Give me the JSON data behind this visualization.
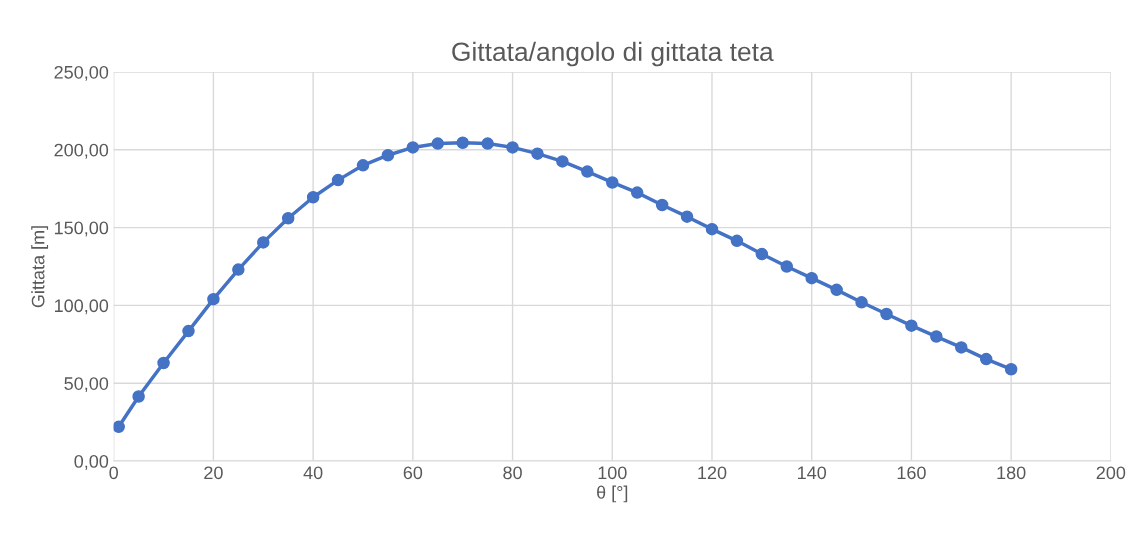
{
  "chart_data": {
    "type": "line",
    "title": "Gittata/angolo di gittata teta",
    "xlabel": "θ [°]",
    "ylabel": "Gittata [m]",
    "x": [
      1,
      5,
      10,
      15,
      20,
      25,
      30,
      35,
      40,
      45,
      50,
      55,
      60,
      65,
      70,
      75,
      80,
      85,
      90,
      95,
      100,
      105,
      110,
      115,
      120,
      125,
      130,
      135,
      140,
      145,
      150,
      155,
      160,
      165,
      170,
      175,
      180
    ],
    "series": [
      {
        "color": "#4472c4",
        "values": [
          22,
          41.5,
          63,
          83.5,
          104,
          123,
          140.5,
          156,
          169.5,
          180.5,
          190,
          196.5,
          201.5,
          204,
          204.5,
          204,
          201.5,
          197.5,
          192.5,
          186,
          179,
          172.5,
          164.5,
          157,
          149,
          141.5,
          133,
          125,
          117.5,
          110,
          102,
          94.5,
          87,
          80,
          73,
          65.5,
          59
        ]
      }
    ],
    "xlim": [
      0,
      200
    ],
    "xticks": [
      0,
      20,
      40,
      60,
      80,
      100,
      120,
      140,
      160,
      180,
      200
    ],
    "ylim": [
      0,
      250
    ],
    "yticks": [
      {
        "value": 0,
        "label": "0,00"
      },
      {
        "value": 50,
        "label": "50,00"
      },
      {
        "value": 100,
        "label": "100,00"
      },
      {
        "value": 150,
        "label": "150,00"
      },
      {
        "value": 200,
        "label": "200,00"
      },
      {
        "value": 250,
        "label": "250,00"
      }
    ],
    "grid": true,
    "marker": "circle",
    "line_style": "solid",
    "legend": false
  }
}
